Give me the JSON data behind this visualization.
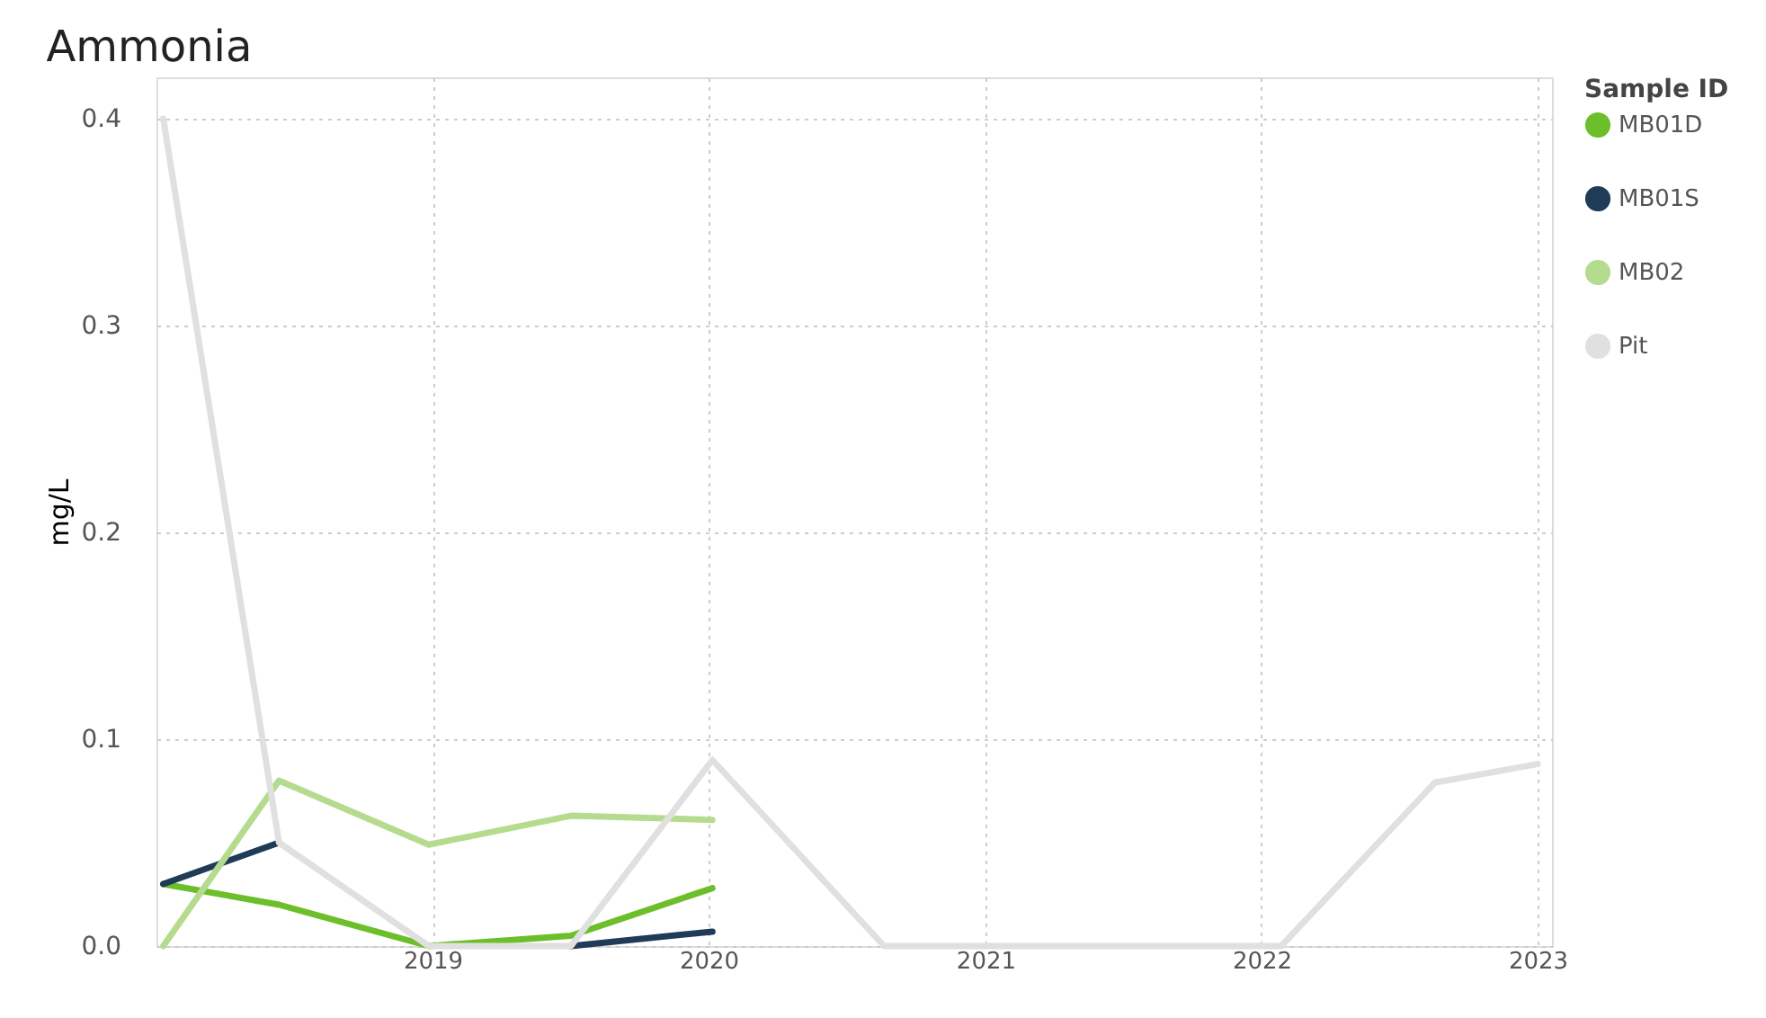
{
  "chart_data": {
    "type": "line",
    "title": "Ammonia",
    "ylabel": "mg/L",
    "legend_title": "Sample ID",
    "series": [
      {
        "name": "MB01D",
        "color": "#6cbf2a",
        "x": [
          "2018-01-10",
          "2018-06-12",
          "2018-12-27",
          "2019-07-03",
          "2020-01-06"
        ],
        "values": [
          0.03,
          0.02,
          0.0,
          0.005,
          0.028
        ]
      },
      {
        "name": "MB01S",
        "color": "#1f3b57",
        "x": [
          "2018-01-10",
          "2018-06-12",
          "2018-12-27",
          "2019-07-03",
          "2020-01-06"
        ],
        "values": [
          0.03,
          0.05,
          null,
          0.0,
          0.007
        ]
      },
      {
        "name": "MB02",
        "color": "#b5dc8e",
        "x": [
          "2018-01-10",
          "2018-06-12",
          "2018-12-27",
          "2019-07-03",
          "2020-01-06"
        ],
        "values": [
          0.0,
          0.08,
          0.049,
          0.063,
          0.061
        ]
      },
      {
        "name": "Pit",
        "color": "#e0e0e0",
        "x": [
          "2018-01-10",
          "2018-06-12",
          "2018-12-27",
          "2019-07-03",
          "2020-01-06",
          "2020-08-20",
          "2022-01-27",
          "2022-08-18",
          "2023-01-01"
        ],
        "values": [
          0.4,
          0.05,
          0.0,
          0.0,
          0.09,
          0.0,
          0.0,
          0.079,
          0.088
        ]
      }
    ],
    "xlim": [
      "2018-01-01",
      "2023-01-20"
    ],
    "xticks": [
      {
        "value": "2019-01-01",
        "label": "2019"
      },
      {
        "value": "2020-01-01",
        "label": "2020"
      },
      {
        "value": "2021-01-01",
        "label": "2021"
      },
      {
        "value": "2022-01-01",
        "label": "2022"
      },
      {
        "value": "2023-01-01",
        "label": "2023"
      }
    ],
    "ylim": [
      0,
      0.42
    ],
    "yticks": [
      {
        "value": 0,
        "label": "0.0"
      },
      {
        "value": 0.1,
        "label": "0.1"
      },
      {
        "value": 0.2,
        "label": "0.2"
      },
      {
        "value": 0.3,
        "label": "0.3"
      },
      {
        "value": 0.4,
        "label": "0.4"
      }
    ],
    "grid": true,
    "legend": "top right",
    "marker": "none",
    "line_style": "solid"
  }
}
